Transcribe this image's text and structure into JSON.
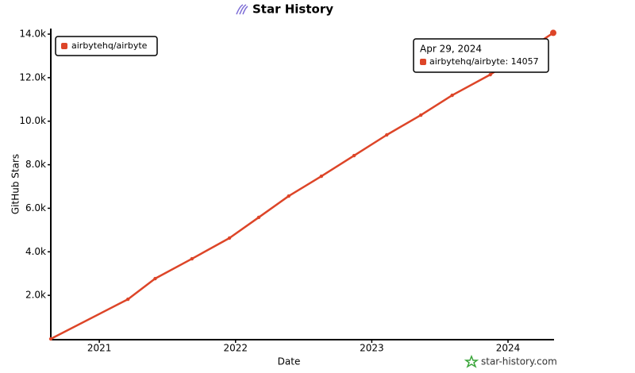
{
  "chart_data": {
    "type": "line",
    "title": "Star History",
    "x_label": "Date",
    "y_label": "GitHub Stars",
    "watermark": "star-history.com",
    "xlim": [
      2020.644,
      2024.332
    ],
    "xticks": [
      2021,
      2022,
      2023,
      2024
    ],
    "ylim": [
      0,
      14000
    ],
    "yticks": [
      {
        "value": 2000,
        "label": "2.0k"
      },
      {
        "value": 4000,
        "label": "4.0k"
      },
      {
        "value": 6000,
        "label": "6.0k"
      },
      {
        "value": 8000,
        "label": "8.0k"
      },
      {
        "value": 10000,
        "label": "10.0k"
      },
      {
        "value": 12000,
        "label": "12.0k"
      },
      {
        "value": 14000,
        "label": "14.0k"
      }
    ],
    "legend": "upper left",
    "x": [
      2020.644,
      2021.21,
      2021.41,
      2021.68,
      2021.955,
      2022.17,
      2022.39,
      2022.63,
      2022.87,
      2023.11,
      2023.36,
      2023.59,
      2023.87,
      2024.332
    ],
    "series": [
      {
        "name": "airbytehq/airbyte",
        "color": "#dd4528",
        "values": [
          0,
          1820,
          2770,
          3680,
          4630,
          5580,
          6560,
          7470,
          8420,
          9370,
          10280,
          11190,
          12140,
          14057
        ]
      }
    ],
    "tooltip": {
      "title": "Apr 29, 2024",
      "label": "airbytehq/airbyte: 14057"
    }
  }
}
